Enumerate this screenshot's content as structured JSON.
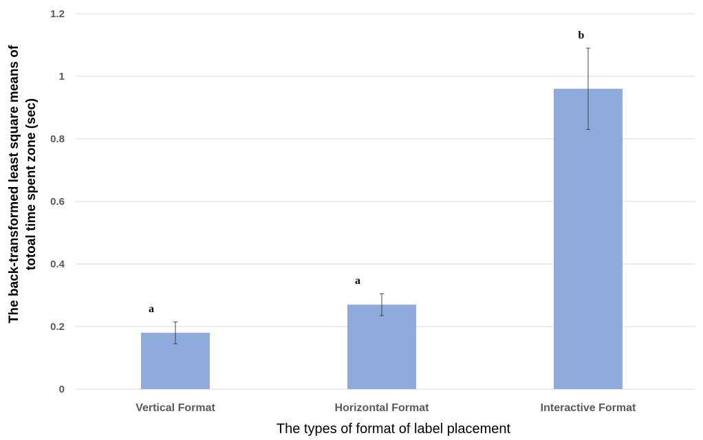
{
  "chart_data": {
    "type": "bar",
    "title": "",
    "xlabel": "The types of format of label placement",
    "ylabel_lines": [
      "The back-transformed least square means of",
      "totoal time spent zone (sec)"
    ],
    "categories": [
      "Vertical Format",
      "Horizontal Format",
      "Interactive Format"
    ],
    "values": [
      0.18,
      0.27,
      0.96
    ],
    "error_plus": [
      0.035,
      0.035,
      0.13
    ],
    "error_minus": [
      0.035,
      0.035,
      0.13
    ],
    "significance_letters": [
      "a",
      "a",
      "b"
    ],
    "ylim": [
      0,
      1.2
    ],
    "yticks": [
      {
        "value": 0,
        "label": "0"
      },
      {
        "value": 0.2,
        "label": "0.2"
      },
      {
        "value": 0.4,
        "label": "0.4"
      },
      {
        "value": 0.6,
        "label": "0.6"
      },
      {
        "value": 0.8,
        "label": "0.8"
      },
      {
        "value": 1.0,
        "label": "1"
      },
      {
        "value": 1.2,
        "label": "1.2"
      }
    ],
    "grid": true,
    "legend": "none",
    "bar_color": "#8FAADC",
    "grid_color": "#D9D9D9",
    "error_bar_color": "#404040"
  }
}
